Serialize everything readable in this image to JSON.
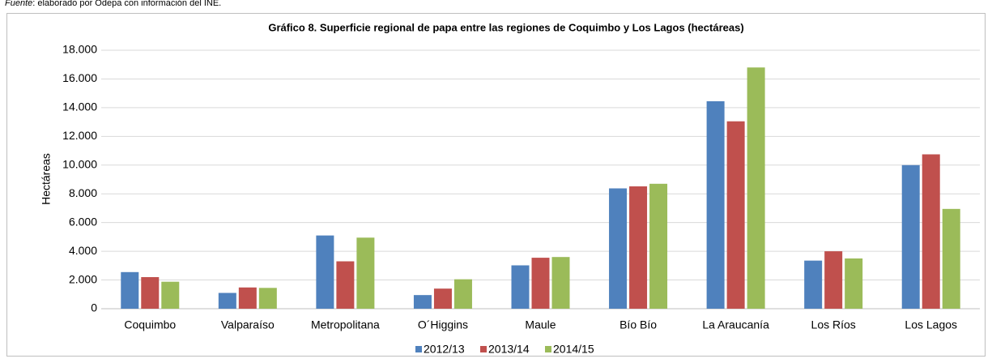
{
  "source_label": "Fuente",
  "source_text": ": elaborado por Odepa con información del INE.",
  "chart_data": {
    "type": "bar",
    "title": "Gráfico 8. Superficie regional de papa entre las regiones de Coquimbo y Los Lagos (hectáreas)",
    "y_label": "Hectáreas",
    "categories": [
      "Coquimbo",
      "Valparaíso",
      "Metropolitana",
      "O´Higgins",
      "Maule",
      "Bío Bío",
      "La Araucanía",
      "Los Ríos",
      "Los Lagos"
    ],
    "series": [
      {
        "name": "2012/13",
        "color": "#4f81bd",
        "values": [
          2550,
          1100,
          5100,
          950,
          3020,
          8380,
          14450,
          3350,
          10000
        ]
      },
      {
        "name": "2013/14",
        "color": "#c0504d",
        "values": [
          2200,
          1480,
          3300,
          1400,
          3550,
          8520,
          13050,
          4000,
          10750
        ]
      },
      {
        "name": "2014/15",
        "color": "#9bbb59",
        "values": [
          1880,
          1450,
          4950,
          2050,
          3600,
          8700,
          16800,
          3500,
          6950
        ]
      }
    ],
    "ylim": [
      0,
      18000
    ],
    "yticks": [
      0,
      {
        "value": 2000,
        "label": "2.000"
      },
      {
        "value": 4000,
        "label": "4.000"
      },
      {
        "value": 6000,
        "label": "6.000"
      },
      {
        "value": 8000,
        "label": "8.000"
      },
      {
        "value": 10000,
        "label": "10.000"
      },
      {
        "value": 12000,
        "label": "12.000"
      },
      {
        "value": 14000,
        "label": "14.000"
      },
      {
        "value": 16000,
        "label": "16.000"
      },
      {
        "value": 18000,
        "label": "18.000"
      }
    ],
    "grid": true,
    "legend": "bottom"
  }
}
